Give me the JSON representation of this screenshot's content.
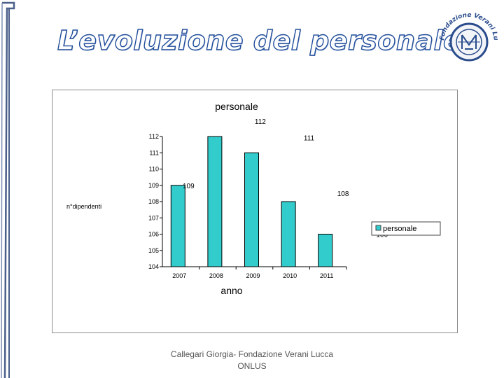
{
  "slide": {
    "title": "L’evoluzione del personale",
    "footer": "Callegari Giorgia- Fondazione Verani Lucca ONLUS",
    "logo_text": "Fondazione Verani Lucca"
  },
  "colors": {
    "bar": "#33CCCC",
    "title_outline": "#1f4c9a",
    "frame": "#4a5f8a"
  },
  "chart_data": {
    "type": "bar",
    "title": "personale",
    "xlabel": "anno",
    "ylabel": "n°dipendenti",
    "categories": [
      "2007",
      "2008",
      "2009",
      "2010",
      "2011"
    ],
    "series": [
      {
        "name": "personale",
        "values": [
          109,
          112,
          111,
          108,
          106
        ],
        "color": "#33CCCC"
      }
    ],
    "data_labels": [
      "109",
      "112",
      "111",
      "108",
      "106"
    ],
    "ylim": [
      104,
      112
    ],
    "yticks": [
      "104",
      "105",
      "106",
      "107",
      "108",
      "109",
      "110",
      "111",
      "112"
    ],
    "grid": false,
    "legend": "right"
  }
}
